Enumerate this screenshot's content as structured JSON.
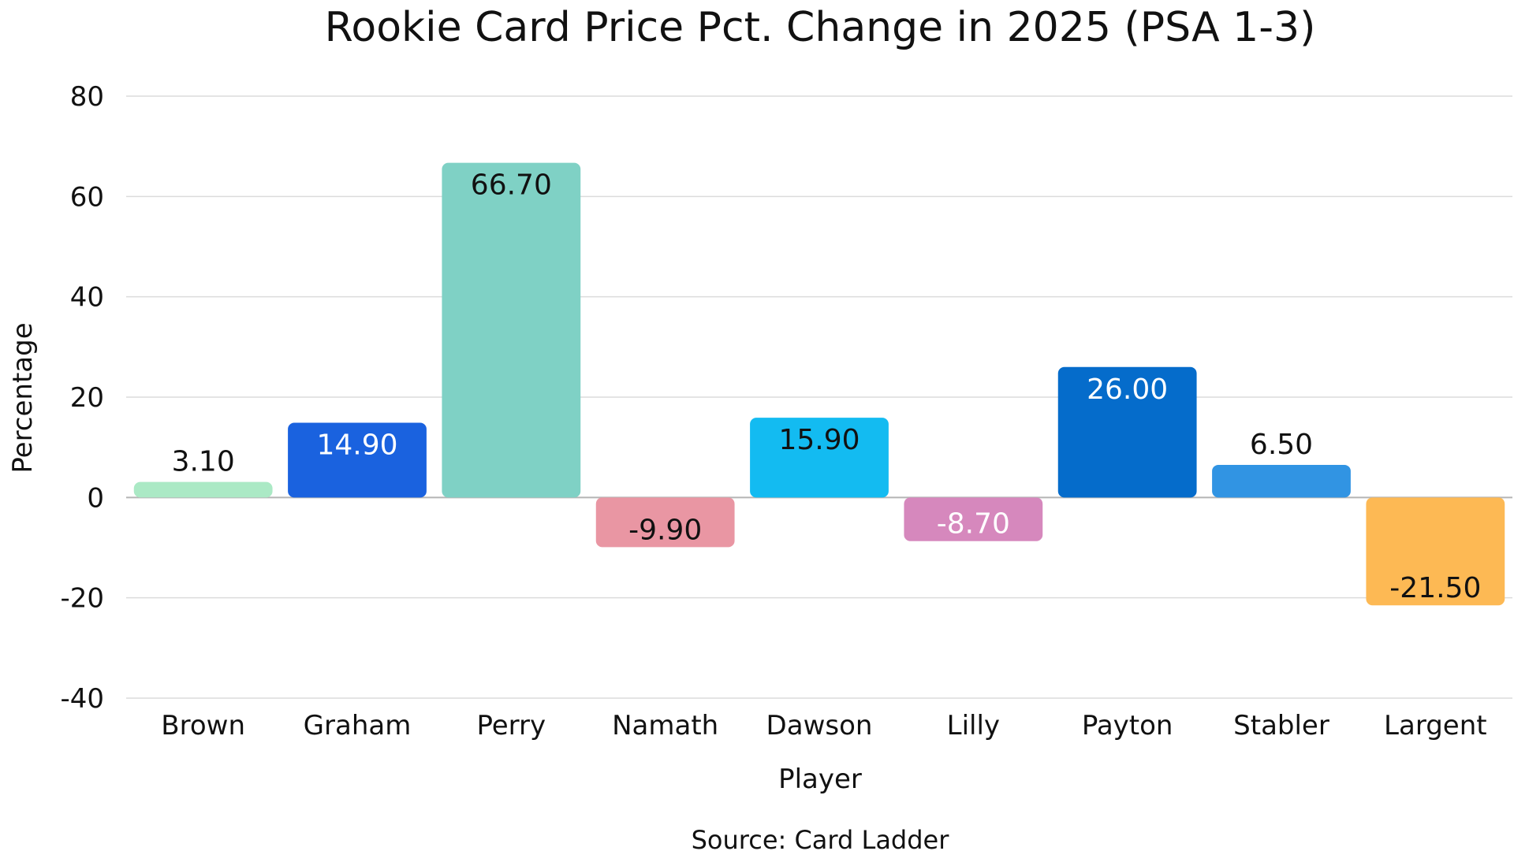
{
  "chart_data": {
    "type": "bar",
    "title": "Rookie Card Price Pct. Change in 2025 (PSA 1-3)",
    "xlabel": "Player",
    "ylabel": "Percentage",
    "source": "Source: Card Ladder",
    "categories": [
      "Brown",
      "Graham",
      "Perry",
      "Namath",
      "Dawson",
      "Lilly",
      "Payton",
      "Stabler",
      "Largent"
    ],
    "values": [
      3.1,
      14.9,
      66.7,
      -9.9,
      15.9,
      -8.7,
      26.0,
      6.5,
      -21.5
    ],
    "value_labels": [
      "3.10",
      "14.90",
      "66.70",
      "-9.90",
      "15.90",
      "-8.70",
      "26.00",
      "6.50",
      "-21.50"
    ],
    "colors": [
      "#abe9c5",
      "#1a62df",
      "#7fd1c5",
      "#e996a3",
      "#13bbf1",
      "#d688bd",
      "#056ccb",
      "#3194e3",
      "#fdb954"
    ],
    "label_colors": [
      "#111111",
      "#ffffff",
      "#111111",
      "#111111",
      "#111111",
      "#ffffff",
      "#ffffff",
      "#111111",
      "#111111"
    ],
    "ylim": [
      -40,
      80
    ],
    "yticks": [
      -40,
      -20,
      0,
      20,
      40,
      60,
      80
    ],
    "grid": true
  }
}
